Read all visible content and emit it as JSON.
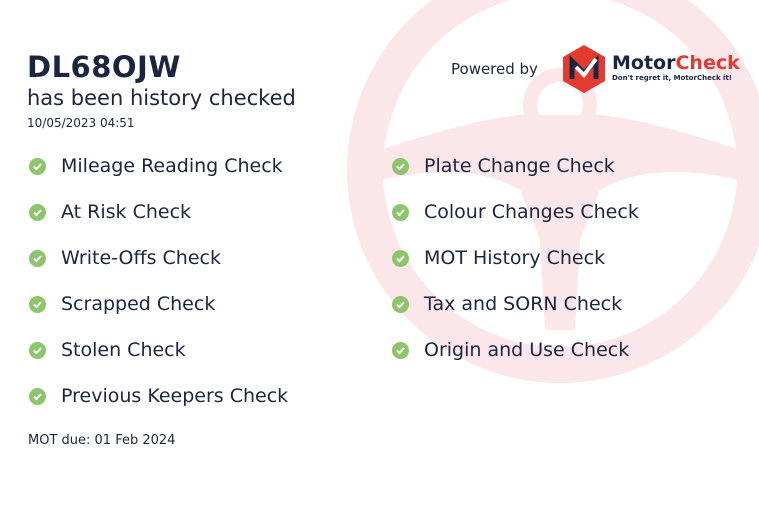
{
  "header": {
    "registration": "DL68OJW",
    "subtitle": "has been history checked",
    "timestamp": "10/05/2023 04:51",
    "powered_by": "Powered by",
    "brand_part1": "Motor",
    "brand_part2": "Check",
    "tagline": "Don't regret it, MotorCheck it!"
  },
  "checks_left": [
    "Mileage Reading Check",
    "At Risk Check",
    "Write-Offs Check",
    "Scrapped Check",
    "Stolen Check",
    "Previous Keepers Check"
  ],
  "checks_right": [
    "Plate Change Check",
    "Colour Changes Check",
    "MOT History Check",
    "Tax and SORN Check",
    "Origin and Use Check"
  ],
  "footer": {
    "mot_due": "MOT due: 01 Feb 2024"
  },
  "colors": {
    "accent": "#e53a2f",
    "check": "#8cc56a",
    "text": "#1b2540",
    "watermark": "#fbe6ea"
  },
  "icons": {
    "check": "check-circle-icon",
    "background": "steering-wheel-icon"
  }
}
